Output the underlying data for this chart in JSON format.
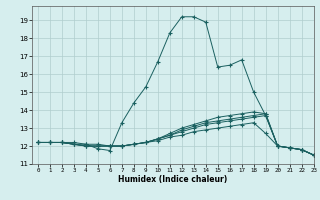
{
  "title": "",
  "xlabel": "Humidex (Indice chaleur)",
  "ylabel": "",
  "background_color": "#d6eeee",
  "grid_color": "#b0cece",
  "line_color": "#1a6060",
  "xlim": [
    -0.5,
    23
  ],
  "ylim": [
    11,
    19.8
  ],
  "xticks": [
    0,
    1,
    2,
    3,
    4,
    5,
    6,
    7,
    8,
    9,
    10,
    11,
    12,
    13,
    14,
    15,
    16,
    17,
    18,
    19,
    20,
    21,
    22,
    23
  ],
  "yticks": [
    11,
    12,
    13,
    14,
    15,
    16,
    17,
    18,
    19
  ],
  "series": [
    {
      "x": [
        0,
        1,
        2,
        3,
        4,
        5,
        6,
        7,
        8,
        9,
        10,
        11,
        12,
        13,
        14,
        15,
        16,
        17,
        18,
        19,
        20,
        21,
        22,
        23
      ],
      "y": [
        12.2,
        12.2,
        12.2,
        12.2,
        12.1,
        11.85,
        11.75,
        13.3,
        14.4,
        15.3,
        16.7,
        18.3,
        19.2,
        19.2,
        18.9,
        16.4,
        16.5,
        16.8,
        15.0,
        13.7,
        12.0,
        11.9,
        11.8,
        11.5
      ]
    },
    {
      "x": [
        0,
        1,
        2,
        3,
        4,
        5,
        6,
        7,
        8,
        9,
        10,
        11,
        12,
        13,
        14,
        15,
        16,
        17,
        18,
        19,
        20,
        21,
        22,
        23
      ],
      "y": [
        12.2,
        12.2,
        12.2,
        12.1,
        12.1,
        12.1,
        12.0,
        12.0,
        12.1,
        12.2,
        12.3,
        12.5,
        12.6,
        12.8,
        12.9,
        13.0,
        13.1,
        13.2,
        13.3,
        12.7,
        12.0,
        11.9,
        11.8,
        11.5
      ]
    },
    {
      "x": [
        0,
        1,
        2,
        3,
        4,
        5,
        6,
        7,
        8,
        9,
        10,
        11,
        12,
        13,
        14,
        15,
        16,
        17,
        18,
        19,
        20,
        21,
        22,
        23
      ],
      "y": [
        12.2,
        12.2,
        12.2,
        12.1,
        12.0,
        12.0,
        12.0,
        12.0,
        12.1,
        12.2,
        12.4,
        12.6,
        12.8,
        13.0,
        13.2,
        13.3,
        13.4,
        13.5,
        13.6,
        13.7,
        12.0,
        11.9,
        11.8,
        11.5
      ]
    },
    {
      "x": [
        0,
        1,
        2,
        3,
        4,
        5,
        6,
        7,
        8,
        9,
        10,
        11,
        12,
        13,
        14,
        15,
        16,
        17,
        18,
        19,
        20,
        21,
        22,
        23
      ],
      "y": [
        12.2,
        12.2,
        12.2,
        12.1,
        12.0,
        12.0,
        12.0,
        12.0,
        12.1,
        12.2,
        12.4,
        12.6,
        12.9,
        13.1,
        13.3,
        13.4,
        13.5,
        13.6,
        13.7,
        13.8,
        12.0,
        11.9,
        11.8,
        11.5
      ]
    },
    {
      "x": [
        0,
        1,
        2,
        3,
        4,
        5,
        6,
        7,
        8,
        9,
        10,
        11,
        12,
        13,
        14,
        15,
        16,
        17,
        18,
        19,
        20,
        21,
        22,
        23
      ],
      "y": [
        12.2,
        12.2,
        12.2,
        12.1,
        12.0,
        12.0,
        12.0,
        12.0,
        12.1,
        12.2,
        12.4,
        12.7,
        13.0,
        13.2,
        13.4,
        13.6,
        13.7,
        13.8,
        13.9,
        13.8,
        12.0,
        11.9,
        11.8,
        11.5
      ]
    }
  ]
}
